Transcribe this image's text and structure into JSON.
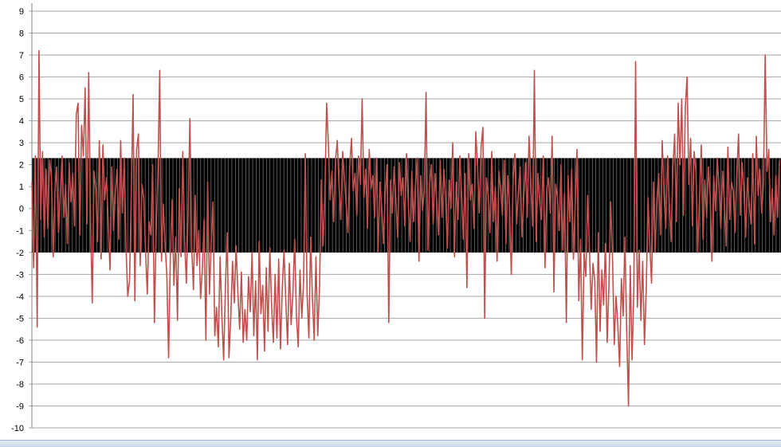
{
  "chart_data": {
    "type": "line",
    "title": "",
    "xlabel": "",
    "ylabel": "",
    "ylim": [
      -10,
      9
    ],
    "yticks": [
      "9",
      "8",
      "7",
      "6",
      "5",
      "4",
      "3",
      "2",
      "1",
      "0",
      "-1",
      "-2",
      "-3",
      "-4",
      "-5",
      "-6",
      "-7",
      "-8",
      "-9",
      "-10"
    ],
    "grid": true,
    "legend": "none",
    "colors": {
      "series": "#c0504d",
      "band": "#000000",
      "band_stripe": "#bdbdbd",
      "grid": "#a6a6a6",
      "axis": "#868686"
    },
    "band": {
      "lower": -2,
      "upper": 2.3
    },
    "n_points": 950,
    "series": [
      {
        "values": [
          1.2,
          -2.7,
          2.4,
          -5.4,
          7.2,
          -0.5,
          2.6,
          -1.3,
          1.8,
          -0.9,
          2.2,
          1.5,
          -2.2,
          0.8,
          1.9,
          -1.1,
          0.6,
          2.4,
          -0.4,
          1.1,
          -1.6,
          2.1,
          0.3,
          1.6,
          -0.8,
          4.3,
          4.8,
          -1.2,
          3.8,
          2.4,
          5.5,
          -0.7,
          6.2,
          -0.3,
          -4.3,
          1.7,
          0.9,
          -1.5,
          3.1,
          -2.3,
          2.9,
          0.4,
          1.4,
          -0.6,
          -2.8,
          1.9,
          -1.0,
          0.7,
          1.8,
          -1.4,
          3.1,
          -0.2,
          2.3,
          -1.7,
          -4.0,
          -3.3,
          0.8,
          5.2,
          -4.2,
          2.7,
          3.4,
          -2.6,
          1.1,
          0.5,
          -1.9,
          -3.9,
          -0.6,
          -1.2,
          2.0,
          -5.2,
          -1.0,
          1.6,
          6.3,
          -2.4,
          0.2,
          -1.6,
          -3.0,
          -6.8,
          -2.1,
          0.4,
          -3.5,
          -1.3,
          -5.1,
          0.9,
          -2.2,
          2.6,
          -1.4,
          -3.4,
          -0.2,
          4.1,
          -1.8,
          -3.7,
          0.6,
          -2.6,
          -1.0,
          -4.1,
          -2.8,
          -0.5,
          -6.0,
          1.2,
          -3.9,
          -1.6,
          0.3,
          -5.8,
          -4.5,
          -6.3,
          -2.2,
          -4.9,
          -6.9,
          -3.6,
          -1.1,
          -6.8,
          -5.0,
          -2.4,
          -4.3,
          -1.7,
          -3.8,
          -5.5,
          -2.9,
          -6.1,
          -4.6,
          -6.0,
          -3.1,
          -4.7,
          -2.0,
          -5.8,
          -3.3,
          -6.9,
          -1.5,
          -4.8,
          -3.5,
          -6.5,
          -2.7,
          -5.6,
          -1.8,
          -4.4,
          -6.1,
          -3.0,
          -5.9,
          -2.3,
          -6.4,
          -3.7,
          -1.9,
          -4.2,
          -6.2,
          -2.5,
          -5.3,
          -3.9,
          -1.4,
          -4.9,
          -6.3,
          -2.8,
          -5.0,
          -3.4,
          2.5,
          -3.9,
          -5.9,
          -1.3,
          -4.1,
          -6.0,
          -2.2,
          -5.8,
          -3.6,
          1.3,
          -1.7,
          0.6,
          4.8,
          2.9,
          0.4,
          1.7,
          -0.6,
          2.2,
          3.1,
          1.0,
          -0.5,
          2.6,
          1.4,
          0.2,
          -1.1,
          1.9,
          3.2,
          0.8,
          1.6,
          -0.3,
          2.4,
          1.1,
          5.0,
          0.5,
          1.8,
          -0.9,
          2.7,
          0.9,
          1.5,
          -0.4,
          2.3,
          -2.0,
          1.2,
          0.1,
          -1.6,
          0.7,
          2.0,
          -5.2,
          1.3,
          -0.2,
          1.9,
          0.4,
          -1.3,
          2.1,
          0.6,
          1.4,
          -0.8,
          2.5,
          0.2,
          -1.5,
          1.7,
          -0.6,
          1.0,
          2.3,
          -2.4,
          1.5,
          -0.1,
          0.8,
          5.3,
          -1.9,
          1.1,
          2.0,
          -0.7,
          1.6,
          0.3,
          -1.2,
          2.2,
          -0.4,
          1.8,
          0.5,
          -1.8,
          1.3,
          0.0,
          3.0,
          -2.2,
          1.2,
          -0.5,
          2.4,
          0.7,
          -1.4,
          1.6,
          -3.6,
          2.5,
          0.4,
          1.1,
          -0.9,
          3.5,
          1.9,
          -0.2,
          2.8,
          3.7,
          -5.0,
          1.4,
          0.6,
          -1.1,
          2.6,
          -0.6,
          1.0,
          -2.4,
          1.7,
          0.9,
          -0.3,
          2.2,
          -1.6,
          1.5,
          0.1,
          -3.0,
          1.3,
          2.5,
          -0.7,
          0.8,
          1.9,
          -1.3,
          0.4,
          2.1,
          -0.4,
          3.3,
          1.2,
          -0.8,
          6.3,
          -1.5,
          1.6,
          0.3,
          -0.5,
          2.4,
          -2.7,
          0.9,
          1.4,
          -0.2,
          3.3,
          -3.8,
          1.1,
          0.5,
          -1.0,
          2.0,
          -1.9,
          0.7,
          -5.2,
          1.5,
          -0.6,
          1.8,
          -2.3,
          0.2,
          2.7,
          -4.2,
          -1.4,
          -6.9,
          -2.0,
          -3.1,
          0.6,
          -1.8,
          -4.6,
          -2.5,
          -3.3,
          -7.0,
          -1.1,
          -5.6,
          -2.8,
          -4.4,
          -1.6,
          -6.1,
          -3.5,
          0.3,
          -2.2,
          -6.2,
          -4.0,
          -5.3,
          -7.2,
          -3.2,
          -4.9,
          -1.3,
          -5.6,
          -9.0,
          -2.6,
          -6.9,
          -3.8,
          6.7,
          -4.5,
          -1.9,
          -5.1,
          -2.4,
          -6.2,
          -3.7,
          0.5,
          -1.7,
          -3.4,
          1.2,
          -2.0,
          0.4,
          1.6,
          -1.2,
          3.1,
          0.7,
          -0.9,
          2.4,
          0.2,
          -1.5,
          1.8,
          3.4,
          -0.6,
          4.8,
          2.0,
          5.0,
          -0.3,
          4.6,
          6.0,
          1.1,
          3.2,
          -0.8,
          2.6,
          1.7,
          -2.0,
          0.5,
          2.9,
          -1.4,
          1.3,
          -0.4,
          1.9,
          0.6,
          -2.4,
          1.5,
          -0.1,
          2.3,
          1.0,
          -0.9,
          1.7,
          0.3,
          -1.7,
          2.8,
          -0.5,
          1.2,
          0.8,
          -1.1,
          1.6,
          3.4,
          -0.3,
          2.1,
          0.9,
          -1.3,
          1.4,
          0.2,
          -0.7,
          2.5,
          -1.6,
          3.3,
          0.6,
          1.8,
          -0.2,
          1.1,
          7.0,
          1.7,
          2.7,
          -0.6,
          0.9,
          -1.2,
          1.5,
          -0.4,
          2.2
        ]
      }
    ]
  }
}
